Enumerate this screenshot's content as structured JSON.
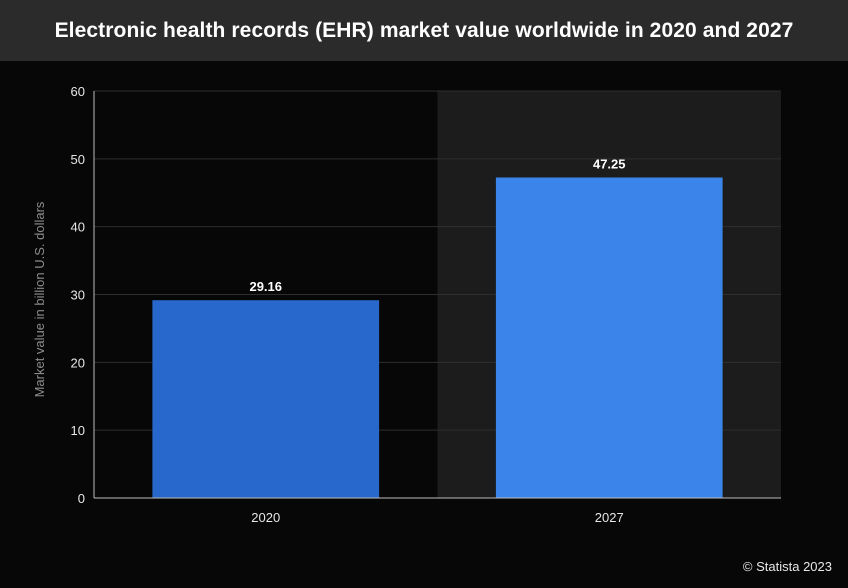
{
  "title": "Electronic health records (EHR) market value worldwide in 2020 and 2027",
  "credit": "© Statista 2023",
  "colors": {
    "bar_2020": "#2868cc",
    "bar_2027": "#3b85ea",
    "background": "#070707",
    "title_bar": "#2b2b2b"
  },
  "chart_data": {
    "type": "bar",
    "categories": [
      "2020",
      "2027"
    ],
    "values": [
      29.16,
      47.25
    ],
    "data_labels": [
      "29.16",
      "47.25"
    ],
    "title": "Electronic health records (EHR) market value worldwide in 2020 and 2027",
    "xlabel": "",
    "ylabel": "Market value in billion U.S. dollars",
    "ylim": [
      0,
      60
    ],
    "yticks": [
      0,
      10,
      20,
      30,
      40,
      50,
      60
    ],
    "grid": true,
    "legend": "none"
  }
}
